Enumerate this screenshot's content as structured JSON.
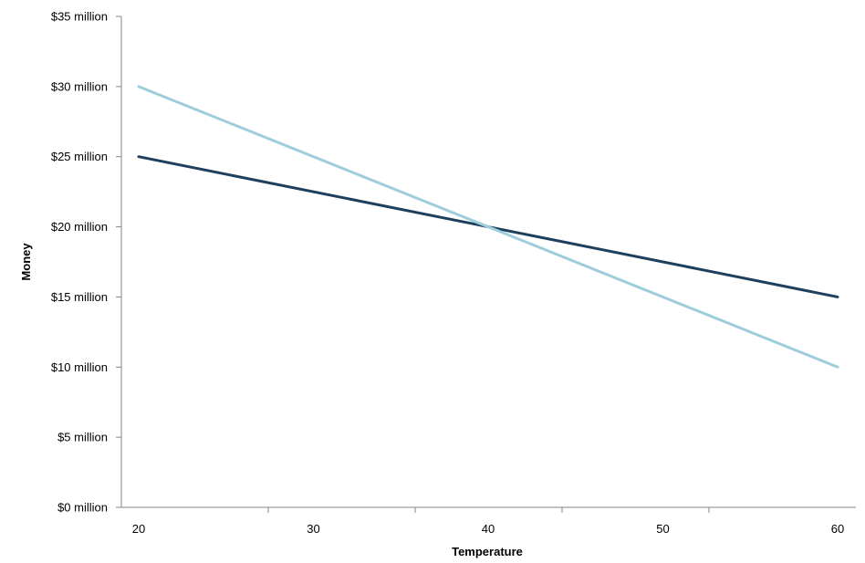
{
  "chart_data": {
    "type": "line",
    "title": "",
    "xlabel": "Temperature",
    "ylabel": "Money",
    "x": [
      20,
      40,
      60
    ],
    "x_ticks": [
      20,
      30,
      40,
      50,
      60
    ],
    "x_tick_labels": [
      "20",
      "30",
      "40",
      "50",
      "60"
    ],
    "y_ticks": [
      0,
      5,
      10,
      15,
      20,
      25,
      30,
      35
    ],
    "y_tick_labels": [
      "$0 million",
      "$5 million",
      "$10 million",
      "$15 million",
      "$20 million",
      "$25 million",
      "$30 million",
      "$35 million"
    ],
    "xlim": [
      20,
      60
    ],
    "ylim": [
      0,
      35
    ],
    "grid": false,
    "legend": "none",
    "series": [
      {
        "values": [
          25,
          20,
          15
        ],
        "color": "#1f3f5e"
      },
      {
        "values": [
          30,
          20,
          10
        ],
        "color": "#a0cddb"
      }
    ]
  }
}
